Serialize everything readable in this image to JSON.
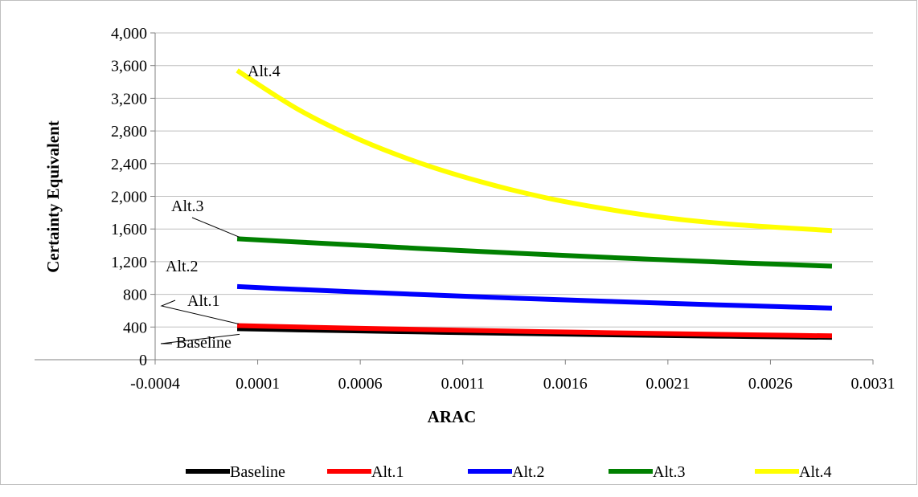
{
  "chart_data": {
    "type": "line",
    "xlabel": "ARAC",
    "ylabel": "Certainty Equivalent",
    "xlim": [
      -0.0004,
      0.0031
    ],
    "ylim": [
      0,
      4000
    ],
    "x_ticks": [
      "-0.0004",
      "0.0001",
      "0.0006",
      "0.0011",
      "0.0016",
      "0.0021",
      "0.0026",
      "0.0031"
    ],
    "y_ticks": [
      "0",
      "400",
      "800",
      "1,200",
      "1,600",
      "2,000",
      "2,400",
      "2,800",
      "3,200",
      "3,600",
      "4,000"
    ],
    "grid": "horizontal",
    "legend_position": "bottom",
    "x": [
      0.0,
      0.0003,
      0.0006,
      0.0009,
      0.0012,
      0.0015,
      0.0018,
      0.0021,
      0.0024,
      0.0027,
      0.0029
    ],
    "series": [
      {
        "name": "Baseline",
        "color": "#000000",
        "values": [
          380,
          365,
          352,
          340,
          328,
          317,
          306,
          296,
          287,
          279,
          274
        ]
      },
      {
        "name": "Alt.1",
        "color": "#ff0000",
        "values": [
          418,
          400,
          385,
          370,
          356,
          343,
          331,
          319,
          308,
          298,
          292
        ]
      },
      {
        "name": "Alt.2",
        "color": "#0000ff",
        "values": [
          895,
          860,
          828,
          797,
          768,
          741,
          715,
          690,
          667,
          645,
          632
        ]
      },
      {
        "name": "Alt.3",
        "color": "#008000",
        "values": [
          1480,
          1440,
          1400,
          1360,
          1323,
          1287,
          1253,
          1221,
          1191,
          1163,
          1145
        ]
      },
      {
        "name": "Alt.4",
        "color": "#ffff00",
        "values": [
          3540,
          3060,
          2690,
          2400,
          2170,
          1985,
          1845,
          1735,
          1660,
          1610,
          1580
        ]
      }
    ],
    "annotations": [
      "Alt.4",
      "Alt.3",
      "Alt.2",
      "Alt.1",
      "Baseline"
    ]
  }
}
